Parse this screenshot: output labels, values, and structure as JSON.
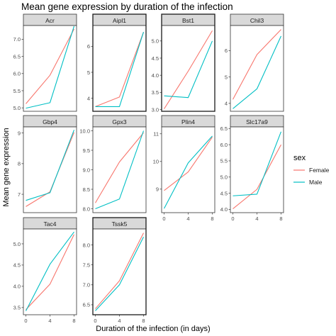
{
  "chart_data": {
    "type": "line",
    "title": "Mean gene expression by duration of the infection",
    "xlabel": "Duration of the infection (in days)",
    "ylabel": "Mean gene expression",
    "x": [
      0,
      4,
      8
    ],
    "x_ticks": [
      "0",
      "4",
      "8"
    ],
    "legend": {
      "title": "sex",
      "position": "right",
      "entries": [
        {
          "name": "Female",
          "color": "#F8766D"
        },
        {
          "name": "Male",
          "color": "#00BFC4"
        }
      ]
    },
    "panel_background": "#ffffff",
    "strip_background": "#d9d9d9",
    "highlighted_panels": [
      "Aipl1",
      "Bst1",
      "Tssk5"
    ],
    "panels": [
      {
        "name": "Acr",
        "ylim": [
          4.9,
          7.4
        ],
        "yticks": [
          "5.0",
          "5.5",
          "6.0",
          "6.5",
          "7.0"
        ],
        "series": [
          {
            "name": "Female",
            "values": [
              5.12,
              5.95,
              7.3
            ]
          },
          {
            "name": "Male",
            "values": [
              4.99,
              5.15,
              7.38
            ]
          }
        ]
      },
      {
        "name": "Aipl1",
        "ylim": [
          3.5,
          6.8
        ],
        "yticks": [
          "4",
          "5",
          "6"
        ],
        "series": [
          {
            "name": "Female",
            "values": [
              3.68,
              4.05,
              6.55
            ]
          },
          {
            "name": "Male",
            "values": [
              3.68,
              3.68,
              6.55
            ]
          }
        ]
      },
      {
        "name": "Bst1",
        "ylim": [
          2.95,
          5.45
        ],
        "yticks": [
          "3.0",
          "3.5",
          "4.0",
          "4.5",
          "5.0"
        ],
        "series": [
          {
            "name": "Female",
            "values": [
              3.02,
              4.12,
              5.3
            ]
          },
          {
            "name": "Male",
            "values": [
              3.4,
              3.35,
              5.0
            ]
          }
        ]
      },
      {
        "name": "Chil3",
        "ylim": [
          3.7,
          6.95
        ],
        "yticks": [
          "4",
          "5",
          "6"
        ],
        "series": [
          {
            "name": "Female",
            "values": [
              4.15,
              5.85,
              6.8
            ]
          },
          {
            "name": "Male",
            "values": [
              3.8,
              4.55,
              6.55
            ]
          }
        ]
      },
      {
        "name": "Gbp4",
        "ylim": [
          6.4,
          9.2
        ],
        "yticks": [
          "7",
          "8",
          "9"
        ],
        "series": [
          {
            "name": "Female",
            "values": [
              6.6,
              7.08,
              9.02
            ]
          },
          {
            "name": "Male",
            "values": [
              6.8,
              7.05,
              9.1
            ]
          }
        ]
      },
      {
        "name": "Gpx3",
        "ylim": [
          7.9,
          10.1
        ],
        "yticks": [
          "8.0",
          "8.5",
          "9.0",
          "9.5",
          "10.0"
        ],
        "series": [
          {
            "name": "Female",
            "values": [
              8.15,
              9.2,
              9.95
            ]
          },
          {
            "name": "Male",
            "values": [
              8.0,
              8.25,
              10.0
            ]
          }
        ]
      },
      {
        "name": "Plin4",
        "ylim": [
          8.15,
          11.25
        ],
        "yticks": [
          "9",
          "10",
          "11"
        ],
        "series": [
          {
            "name": "Female",
            "values": [
              8.95,
              9.62,
              10.88
            ]
          },
          {
            "name": "Male",
            "values": [
              8.3,
              9.95,
              10.92
            ]
          }
        ]
      },
      {
        "name": "Slc17a9",
        "ylim": [
          3.9,
          6.55
        ],
        "yticks": [
          "4.0",
          "4.5",
          "5.0",
          "5.5",
          "6.0",
          "6.5"
        ],
        "series": [
          {
            "name": "Female",
            "values": [
              4.02,
              4.62,
              6.0
            ]
          },
          {
            "name": "Male",
            "values": [
              4.42,
              4.47,
              6.4
            ]
          }
        ]
      },
      {
        "name": "Tac4",
        "ylim": [
          3.33,
          5.35
        ],
        "yticks": [
          "3.5",
          "4.0",
          "4.5",
          "5.0"
        ],
        "series": [
          {
            "name": "Female",
            "values": [
              3.45,
              4.05,
              5.22
            ]
          },
          {
            "name": "Male",
            "values": [
              3.42,
              4.52,
              5.28
            ]
          }
        ]
      },
      {
        "name": "Tssk5",
        "ylim": [
          6.25,
          8.4
        ],
        "yticks": [
          "6.5",
          "7.0",
          "7.5",
          "8.0"
        ],
        "series": [
          {
            "name": "Female",
            "values": [
              6.4,
              7.1,
              8.3
            ]
          },
          {
            "name": "Male",
            "values": [
              6.35,
              7.0,
              8.2
            ]
          }
        ]
      }
    ]
  }
}
